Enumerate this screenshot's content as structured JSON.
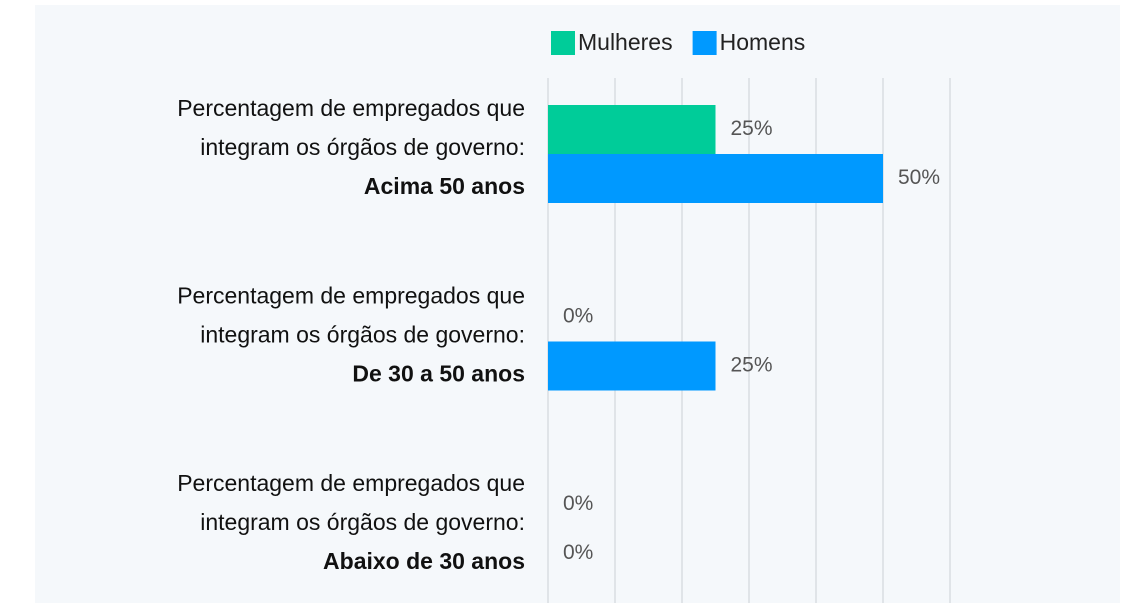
{
  "chart_data": {
    "type": "bar",
    "orientation": "horizontal",
    "categories": [
      [
        "Percentagem de empregados que",
        "integram os órgãos de governo:",
        "Acima 50 anos"
      ],
      [
        "Percentagem de empregados que",
        "integram os órgãos de governo:",
        "De 30 a 50 anos"
      ],
      [
        "Percentagem de empregados que",
        "integram os órgãos de governo:",
        "Abaixo de 30 anos"
      ]
    ],
    "series": [
      {
        "name": "Mulheres",
        "color": "#00cc99",
        "values": [
          25,
          0,
          0
        ],
        "value_labels": [
          "25%",
          "0%",
          "0%"
        ]
      },
      {
        "name": "Homens",
        "color": "#0099ff",
        "values": [
          50,
          25,
          0
        ],
        "value_labels": [
          "50%",
          "25%",
          "0%"
        ]
      }
    ],
    "xlim": [
      0,
      60
    ],
    "xticks": [
      0,
      10,
      20,
      30,
      40,
      50,
      60
    ],
    "grid": true,
    "legend": "top"
  }
}
